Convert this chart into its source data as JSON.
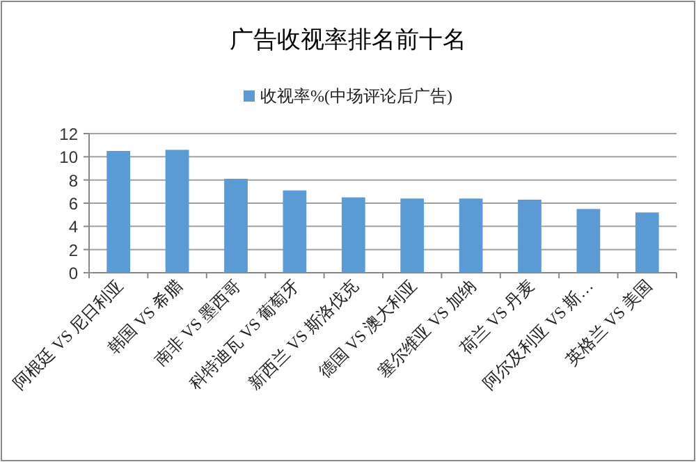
{
  "chart_data": {
    "type": "bar",
    "title": "广告收视率排名前十名",
    "categories": [
      "阿根廷 VS 尼日利亚",
      "韩国 VS 希腊",
      "南非 VS 墨西哥",
      "科特迪瓦 VS 葡萄牙",
      "新西兰 VS 斯洛伐克",
      "德国 VS 澳大利亚",
      "塞尔维亚 VS 加纳",
      "荷兰 VS 丹麦",
      "阿尔及利亚 VS 斯…",
      "英格兰 VS 美国"
    ],
    "series": [
      {
        "name": "收视率%(中场评论后广告)",
        "color": "#5b9bd5",
        "values": [
          10.5,
          10.6,
          8.1,
          7.1,
          6.5,
          6.4,
          6.4,
          6.3,
          5.5,
          5.2
        ]
      }
    ],
    "ylim": [
      0,
      12
    ],
    "yticks": [
      0,
      2,
      4,
      6,
      8,
      10,
      12
    ],
    "grid": "y",
    "legend": "top"
  }
}
